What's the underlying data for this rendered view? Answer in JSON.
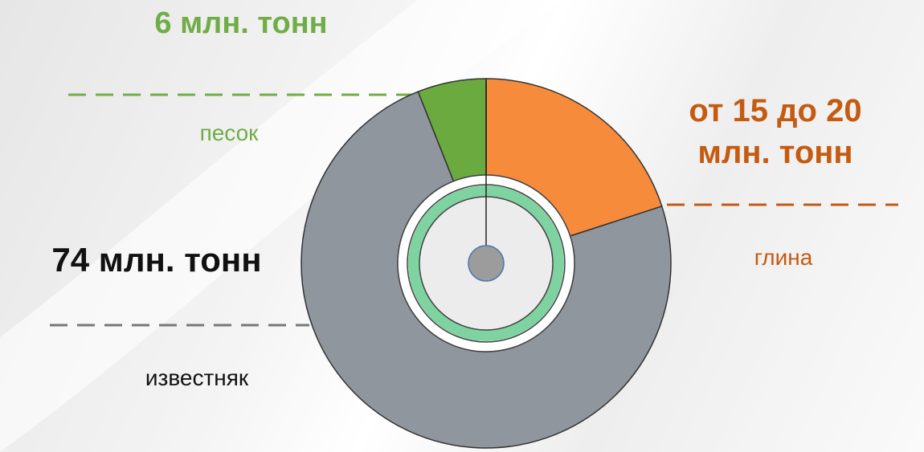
{
  "chart_data": {
    "type": "donut",
    "categories": [
      "глина",
      "известняк",
      "песок"
    ],
    "values": [
      20,
      74,
      6
    ],
    "value_labels": [
      "от 15 до 20 млн. тонн",
      "74 млн. тонн",
      "6 млн. тонн"
    ],
    "colors": [
      "#f78b3c",
      "#8f969e",
      "#6aaa3f"
    ],
    "label_colors": [
      "#c55a11",
      "#111111",
      "#70ad47"
    ]
  }
}
